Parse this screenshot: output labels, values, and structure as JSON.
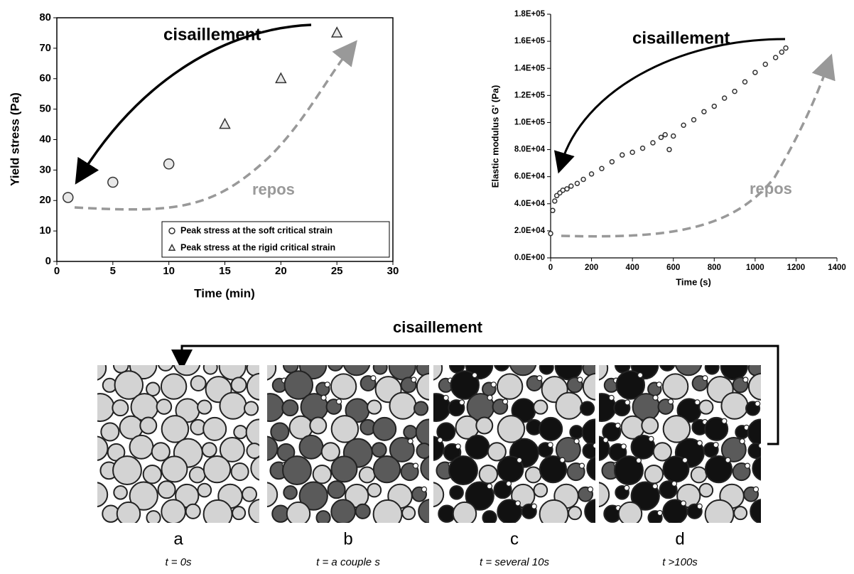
{
  "chart_data": [
    {
      "type": "scatter",
      "x_label": "Time (min)",
      "y_label": "Yield stress (Pa)",
      "xlim": [
        0,
        30
      ],
      "xticks": [
        0,
        5,
        10,
        15,
        20,
        25,
        30
      ],
      "ylim": [
        0,
        80
      ],
      "yticks": [
        0,
        10,
        20,
        30,
        40,
        50,
        60,
        70,
        80
      ],
      "legend": "lower right",
      "annotations": [
        "cisaillement",
        "repos"
      ],
      "series": [
        {
          "name": "Peak stress at the soft critical strain",
          "marker": "circle",
          "color": "#e8e8e8",
          "x": [
            1,
            5,
            10
          ],
          "values": [
            21,
            26,
            32
          ]
        },
        {
          "name": "Peak stress at the rigid critical strain",
          "marker": "triangle",
          "color": "#e8e8e8",
          "x": [
            15,
            20,
            25
          ],
          "values": [
            45,
            60,
            75
          ]
        }
      ]
    },
    {
      "type": "scatter",
      "x_label": "Time (s)",
      "y_label": "Elastic modulus G' (Pa)",
      "xlim": [
        0,
        1400
      ],
      "xticks": [
        0,
        200,
        400,
        600,
        800,
        1000,
        1200,
        1400
      ],
      "ylim": [
        0,
        180000
      ],
      "yticks": [
        {
          "value": 0,
          "label": "0.0E+00"
        },
        {
          "value": 20000,
          "label": "2.0E+04"
        },
        {
          "value": 40000,
          "label": "4.0E+04"
        },
        {
          "value": 60000,
          "label": "6.0E+04"
        },
        {
          "value": 80000,
          "label": "8.0E+04"
        },
        {
          "value": 100000,
          "label": "1.0E+05"
        },
        {
          "value": 120000,
          "label": "1.2E+05"
        },
        {
          "value": 140000,
          "label": "1.4E+05"
        },
        {
          "value": 160000,
          "label": "1.6E+05"
        },
        {
          "value": 180000,
          "label": "1.8E+05"
        }
      ],
      "annotations": [
        "cisaillement",
        "repos"
      ],
      "series": [
        {
          "marker": "circle",
          "color": "#ffffff",
          "x": [
            0,
            10,
            20,
            30,
            45,
            60,
            80,
            100,
            130,
            160,
            200,
            250,
            300,
            350,
            400,
            450,
            500,
            540,
            560,
            580,
            600,
            650,
            700,
            750,
            800,
            850,
            900,
            950,
            1000,
            1050,
            1100,
            1130,
            1150
          ],
          "values": [
            18000,
            35000,
            42000,
            46000,
            48000,
            50000,
            51000,
            53000,
            55000,
            58000,
            62000,
            66000,
            71000,
            76000,
            78000,
            81000,
            85000,
            89000,
            91000,
            80000,
            90000,
            98000,
            102000,
            108000,
            112000,
            118000,
            123000,
            130000,
            137000,
            143000,
            148000,
            152000,
            155000
          ]
        }
      ]
    }
  ],
  "diagram": {
    "title": "cisaillement",
    "panels": [
      {
        "label": "a",
        "caption": "t = 0s"
      },
      {
        "label": "b",
        "caption": "t = a couple s"
      },
      {
        "label": "c",
        "caption": "t = several 10s"
      },
      {
        "label": "d",
        "caption": "t >100s"
      }
    ]
  }
}
